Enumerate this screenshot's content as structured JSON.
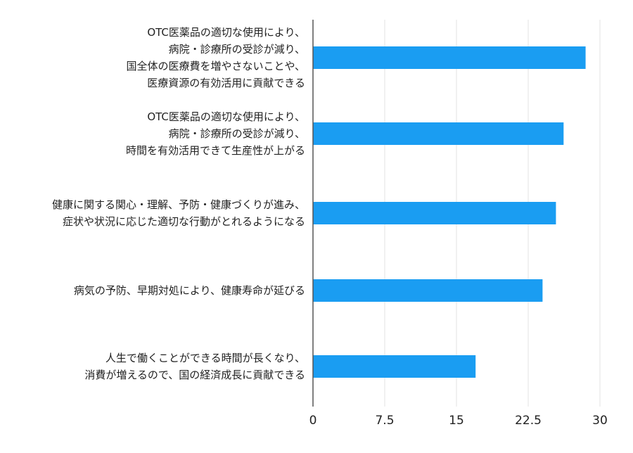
{
  "chart_data": {
    "type": "bar",
    "orientation": "horizontal",
    "categories": [
      [
        "OTC医薬品の適切な使用により、",
        "病院・診療所の受診が減り、",
        "国全体の医療費を増やさないことや、",
        "医療資源の有効活用に貢献できる"
      ],
      [
        "OTC医薬品の適切な使用により、",
        "病院・診療所の受診が減り、",
        "時間を有効活用できて生産性が上がる"
      ],
      [
        "健康に関する関心・理解、予防・健康づくりが進み、",
        "症状や状況に応じた適切な行動がとれるようになる"
      ],
      [
        "病気の予防、早期対処により、健康寿命が延びる"
      ],
      [
        "人生で働くことができる時間が長くなり、",
        "消費が増えるので、国の経済成長に貢献できる"
      ]
    ],
    "values": [
      28.5,
      26.2,
      25.4,
      24.0,
      17.0
    ],
    "xlim": [
      0,
      30
    ],
    "ticks": [
      "0",
      "7.5",
      "15",
      "22.5",
      "30"
    ],
    "tick_values": [
      0,
      7.5,
      15,
      22.5,
      30
    ],
    "title": "",
    "xlabel": "",
    "ylabel": "",
    "grid": "vertical",
    "legend": "none",
    "bar_color": "#1a9df2",
    "grid_color": "#e3e3e3",
    "axis_color": "#555555"
  }
}
